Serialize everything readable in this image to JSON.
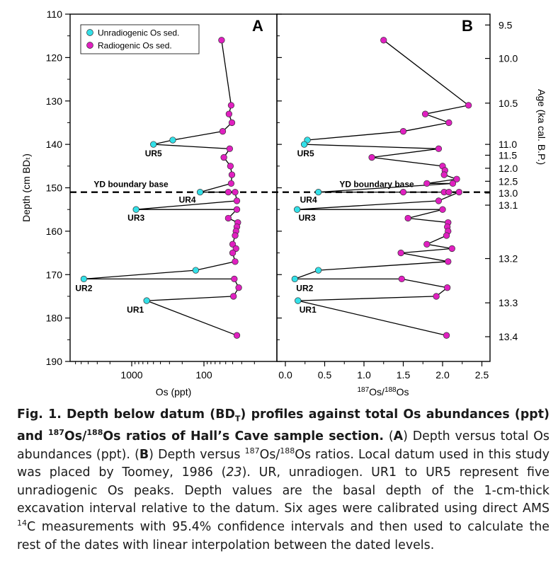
{
  "chart_data": [
    {
      "panel": "A",
      "type": "scatter",
      "mode": "lines+markers",
      "title": "A",
      "xlabel": "Os (ppt)",
      "ylabel": "Depth (cm BDₜ)",
      "xscale": "log",
      "xaxis_reversed": true,
      "xticks": [
        1000,
        100
      ],
      "xtick_labels": [
        "1000",
        "100"
      ],
      "ylim": [
        110,
        190
      ],
      "yaxis_reversed": true,
      "yticks": [
        110,
        120,
        130,
        140,
        150,
        160,
        170,
        180,
        190
      ],
      "legend": {
        "placement": "top-left",
        "items": [
          {
            "label": "Unradiogenic Os sed.",
            "color": "#33e0e8"
          },
          {
            "label": "Radiogenic Os sed.",
            "color": "#e020c0"
          }
        ]
      },
      "horizontal_line": {
        "y": 151,
        "label": "YD boundary base",
        "style": "dashed"
      },
      "points": [
        {
          "y": 116,
          "x": 57,
          "type": "radiogenic"
        },
        {
          "y": 131,
          "x": 42,
          "type": "radiogenic"
        },
        {
          "y": 133,
          "x": 45,
          "type": "radiogenic"
        },
        {
          "y": 135,
          "x": 41,
          "type": "radiogenic"
        },
        {
          "y": 137,
          "x": 55,
          "type": "radiogenic"
        },
        {
          "y": 139,
          "x": 270,
          "type": "unradiogenic"
        },
        {
          "y": 140,
          "x": 500,
          "type": "unradiogenic",
          "label": "UR5"
        },
        {
          "y": 141,
          "x": 44,
          "type": "radiogenic"
        },
        {
          "y": 143,
          "x": 53,
          "type": "radiogenic"
        },
        {
          "y": 145,
          "x": 43,
          "type": "radiogenic"
        },
        {
          "y": 147,
          "x": 41,
          "type": "radiogenic"
        },
        {
          "y": 149,
          "x": 42,
          "type": "radiogenic"
        },
        {
          "y": 151,
          "x": 113,
          "type": "unradiogenic",
          "label": "UR4"
        },
        {
          "y": 151,
          "x": 46,
          "type": "radiogenic"
        },
        {
          "y": 151,
          "x": 37,
          "type": "radiogenic"
        },
        {
          "y": 153,
          "x": 35,
          "type": "radiogenic"
        },
        {
          "y": 155,
          "x": 870,
          "type": "unradiogenic",
          "label": "UR3"
        },
        {
          "y": 155,
          "x": 35,
          "type": "radiogenic"
        },
        {
          "y": 157,
          "x": 46,
          "type": "radiogenic"
        },
        {
          "y": 158,
          "x": 34,
          "type": "radiogenic"
        },
        {
          "y": 159,
          "x": 35,
          "type": "radiogenic"
        },
        {
          "y": 160,
          "x": 36,
          "type": "radiogenic"
        },
        {
          "y": 161,
          "x": 37,
          "type": "radiogenic"
        },
        {
          "y": 163,
          "x": 40,
          "type": "radiogenic"
        },
        {
          "y": 164,
          "x": 36,
          "type": "radiogenic"
        },
        {
          "y": 165,
          "x": 40,
          "type": "radiogenic"
        },
        {
          "y": 167,
          "x": 37,
          "type": "radiogenic"
        },
        {
          "y": 169,
          "x": 130,
          "type": "unradiogenic"
        },
        {
          "y": 171,
          "x": 4600,
          "type": "unradiogenic",
          "label": "UR2"
        },
        {
          "y": 171,
          "x": 38,
          "type": "radiogenic"
        },
        {
          "y": 173,
          "x": 33,
          "type": "radiogenic"
        },
        {
          "y": 175,
          "x": 39,
          "type": "radiogenic"
        },
        {
          "y": 176,
          "x": 620,
          "type": "unradiogenic",
          "label": "UR1"
        },
        {
          "y": 184,
          "x": 35,
          "type": "radiogenic"
        }
      ]
    },
    {
      "panel": "B",
      "type": "scatter",
      "mode": "lines+markers",
      "title": "B",
      "xlabel": "187Os/188Os",
      "y2label": "Age (ka cal. B.P.)",
      "xlim": [
        0,
        2.7
      ],
      "xticks": [
        0.0,
        0.5,
        1.0,
        1.5,
        2.0,
        2.5
      ],
      "xtick_labels": [
        "0.0",
        "0.5",
        "1.0",
        "1.5",
        "2.0",
        "2.5"
      ],
      "ylim": [
        110,
        190
      ],
      "yaxis_reversed": true,
      "age_ticks": [
        {
          "depth": 112.5,
          "label": "9.5"
        },
        {
          "depth": 120.2,
          "label": "10.0"
        },
        {
          "depth": 130.5,
          "label": "10.5"
        },
        {
          "depth": 140.0,
          "label": "11.0"
        },
        {
          "depth": 142.5,
          "label": "11.5"
        },
        {
          "depth": 145.5,
          "label": "12.0"
        },
        {
          "depth": 148.5,
          "label": "12.5"
        },
        {
          "depth": 151.2,
          "label": "13.0"
        },
        {
          "depth": 154.0,
          "label": "13.1"
        },
        {
          "depth": 166.3,
          "label": "13.2"
        },
        {
          "depth": 176.5,
          "label": "13.3"
        },
        {
          "depth": 184.3,
          "label": "13.4"
        }
      ],
      "horizontal_line": {
        "y": 151,
        "label": "YD boundary base",
        "style": "dashed"
      },
      "points": [
        {
          "y": 116,
          "x": 1.25,
          "type": "radiogenic"
        },
        {
          "y": 131,
          "x": 2.33,
          "type": "radiogenic"
        },
        {
          "y": 133,
          "x": 1.78,
          "type": "radiogenic"
        },
        {
          "y": 135,
          "x": 2.08,
          "type": "radiogenic"
        },
        {
          "y": 137,
          "x": 1.5,
          "type": "radiogenic"
        },
        {
          "y": 139,
          "x": 0.28,
          "type": "unradiogenic"
        },
        {
          "y": 140,
          "x": 0.24,
          "type": "unradiogenic",
          "label": "UR5"
        },
        {
          "y": 141,
          "x": 1.95,
          "type": "radiogenic"
        },
        {
          "y": 143,
          "x": 1.1,
          "type": "radiogenic"
        },
        {
          "y": 145,
          "x": 2.0,
          "type": "radiogenic"
        },
        {
          "y": 146,
          "x": 2.03,
          "type": "radiogenic"
        },
        {
          "y": 147,
          "x": 2.02,
          "type": "radiogenic"
        },
        {
          "y": 148,
          "x": 2.18,
          "type": "radiogenic"
        },
        {
          "y": 149,
          "x": 1.8,
          "type": "radiogenic"
        },
        {
          "y": 149,
          "x": 2.13,
          "type": "radiogenic"
        },
        {
          "y": 151,
          "x": 0.42,
          "type": "unradiogenic",
          "label": "UR4"
        },
        {
          "y": 151,
          "x": 1.5,
          "type": "radiogenic"
        },
        {
          "y": 151,
          "x": 2.02,
          "type": "radiogenic"
        },
        {
          "y": 151,
          "x": 2.08,
          "type": "radiogenic"
        },
        {
          "y": 151,
          "x": 2.21,
          "type": "radiogenic"
        },
        {
          "y": 153,
          "x": 1.95,
          "type": "radiogenic"
        },
        {
          "y": 155,
          "x": 0.15,
          "type": "unradiogenic",
          "label": "UR3"
        },
        {
          "y": 155,
          "x": 2.0,
          "type": "radiogenic"
        },
        {
          "y": 157,
          "x": 1.56,
          "type": "radiogenic"
        },
        {
          "y": 158,
          "x": 2.07,
          "type": "radiogenic"
        },
        {
          "y": 159,
          "x": 2.06,
          "type": "radiogenic"
        },
        {
          "y": 160,
          "x": 2.07,
          "type": "radiogenic"
        },
        {
          "y": 161,
          "x": 2.05,
          "type": "radiogenic"
        },
        {
          "y": 163,
          "x": 1.8,
          "type": "radiogenic"
        },
        {
          "y": 164,
          "x": 2.12,
          "type": "radiogenic"
        },
        {
          "y": 165,
          "x": 1.47,
          "type": "radiogenic"
        },
        {
          "y": 167,
          "x": 2.07,
          "type": "radiogenic"
        },
        {
          "y": 169,
          "x": 0.42,
          "type": "unradiogenic"
        },
        {
          "y": 171,
          "x": 0.12,
          "type": "unradiogenic",
          "label": "UR2"
        },
        {
          "y": 171,
          "x": 1.48,
          "type": "radiogenic"
        },
        {
          "y": 173,
          "x": 2.06,
          "type": "radiogenic"
        },
        {
          "y": 175,
          "x": 1.92,
          "type": "radiogenic"
        },
        {
          "y": 176,
          "x": 0.16,
          "type": "unradiogenic",
          "label": "UR1"
        },
        {
          "y": 184,
          "x": 2.05,
          "type": "radiogenic"
        }
      ]
    }
  ],
  "caption": {
    "lead": "Fig. 1. Depth below datum (BD",
    "lead_sub": "T",
    "lead2": ") profiles against total Os abundances (ppt) and ",
    "lead_sup1": "187",
    "lead3": "Os/",
    "lead_sup2": "188",
    "lead4": "Os ratios of Hall’s Cave sample section.",
    "t1": " (",
    "A": "A",
    "t2": ") Depth versus total Os abundances (ppt). (",
    "B": "B",
    "t3": ") Depth versus ",
    "sup1": "187",
    "t4": "Os/",
    "sup2": "188",
    "t5": "Os ratios. Local datum used in this study was placed by Toomey, 1986 (",
    "ref": "23",
    "t6": "). UR, unradiogen. UR1 to UR5 represent five unradiogenic Os peaks. Depth values are the basal depth of the 1-cm-thick excavation interval relative to the datum. Six ages were calibrated using direct AMS ",
    "sup3": "14",
    "t7": "C measurements with 95.4% confidence intervals and then used to calculate the rest of the dates with linear interpolation between the dated levels."
  }
}
